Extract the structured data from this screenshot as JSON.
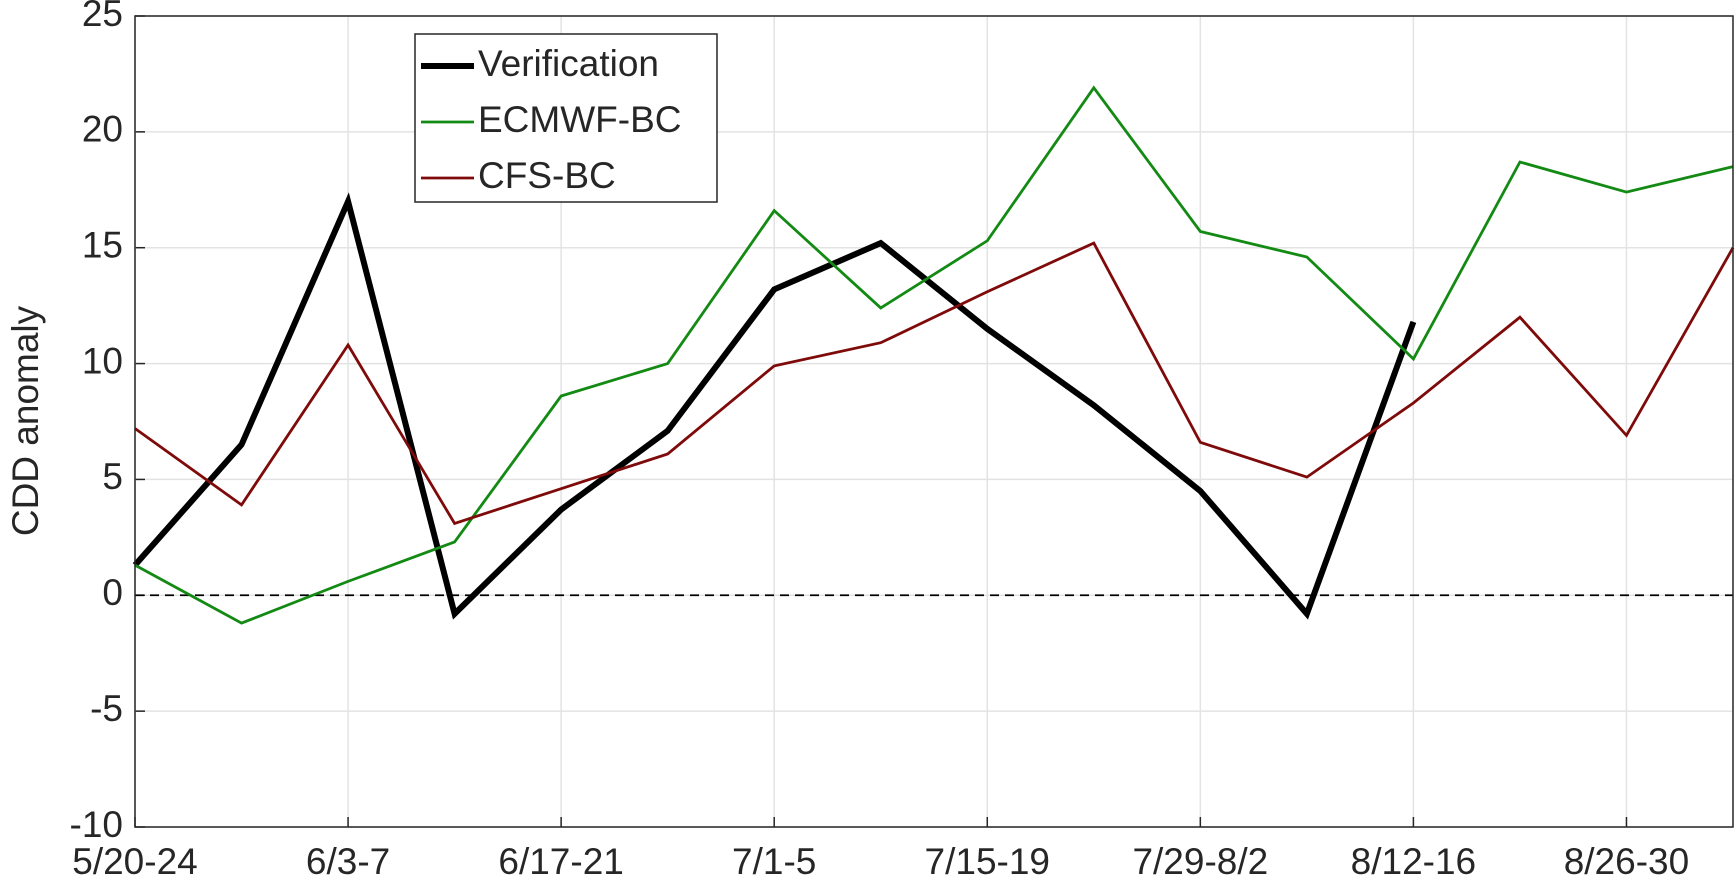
{
  "chart_data": {
    "type": "line",
    "ylabel": "CDD anomaly",
    "categories": [
      "5/20-24",
      null,
      "6/3-7",
      null,
      "6/17-21",
      null,
      "7/1-5",
      null,
      "7/15-19",
      null,
      "7/29-8/2",
      null,
      "8/12-16",
      null,
      "8/26-30",
      null
    ],
    "series": [
      {
        "name": "Verification",
        "color": "#000000",
        "values": [
          1.3,
          6.5,
          17.0,
          -0.8,
          3.7,
          7.1,
          13.2,
          15.2,
          11.5,
          8.2,
          4.5,
          -0.8,
          11.8,
          null,
          null,
          null
        ]
      },
      {
        "name": "ECMWF-BC",
        "color": "#138a13",
        "values": [
          1.3,
          -1.2,
          0.6,
          2.3,
          8.6,
          10.0,
          16.6,
          12.4,
          15.3,
          21.9,
          15.7,
          14.6,
          10.2,
          18.7,
          17.4,
          18.5
        ]
      },
      {
        "name": "CFS-BC",
        "color": "#7f0a0a",
        "values": [
          7.2,
          3.9,
          10.8,
          3.1,
          4.6,
          6.1,
          9.9,
          10.9,
          13.1,
          15.2,
          6.6,
          5.1,
          8.3,
          12.0,
          6.9,
          15.0
        ]
      }
    ],
    "ylim": [
      -10,
      25
    ],
    "yticks": [
      -10,
      -5,
      0,
      5,
      10,
      15,
      20,
      25
    ],
    "reference_line": 0,
    "grid": true,
    "legend": "upper left"
  }
}
